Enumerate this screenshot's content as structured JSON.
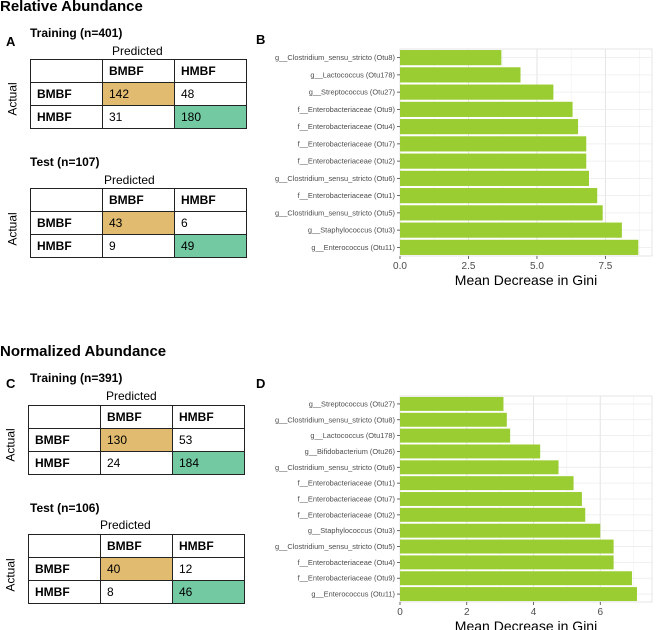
{
  "sections": {
    "relative": "Relative Abundance",
    "normalized": "Normalized Abundance"
  },
  "panels": {
    "a": "A",
    "b": "B",
    "c": "C",
    "d": "D"
  },
  "confusion": {
    "predicted_label": "Predicted",
    "actual_label": "Actual",
    "a_train": {
      "title": "Training (n=401)",
      "cols": [
        "BMBF",
        "HMBF"
      ],
      "rows": [
        {
          "label": "BMBF",
          "values": [
            "142",
            "48"
          ]
        },
        {
          "label": "HMBF",
          "values": [
            "31",
            "180"
          ]
        }
      ]
    },
    "a_test": {
      "title": "Test (n=107)",
      "cols": [
        "BMBF",
        "HMBF"
      ],
      "rows": [
        {
          "label": "BMBF",
          "values": [
            "43",
            "6"
          ]
        },
        {
          "label": "HMBF",
          "values": [
            "9",
            "49"
          ]
        }
      ]
    },
    "c_train": {
      "title": "Training (n=391)",
      "cols": [
        "BMBF",
        "HMBF"
      ],
      "rows": [
        {
          "label": "BMBF",
          "values": [
            "130",
            "53"
          ]
        },
        {
          "label": "HMBF",
          "values": [
            "24",
            "184"
          ]
        }
      ]
    },
    "c_test": {
      "title": "Test (n=106)",
      "cols": [
        "BMBF",
        "HMBF"
      ],
      "rows": [
        {
          "label": "BMBF",
          "values": [
            "40",
            "12"
          ]
        },
        {
          "label": "HMBF",
          "values": [
            "8",
            "46"
          ]
        }
      ]
    }
  },
  "chart_data": [
    {
      "type": "bar",
      "orientation": "horizontal",
      "categories": [
        "g__Clostridium_sensu_stricto (Otu8)",
        "g__Lactococcus (Otu178)",
        "g__Streptococcus (Otu27)",
        "f__Enterobacteriaceae (Otu9)",
        "f__Enterobacteriaceae (Otu4)",
        "f__Enterobacteriaceae (Otu7)",
        "f__Enterobacteriaceae (Otu2)",
        "g__Clostridium_sensu_stricto (Otu6)",
        "f__Enterobacteriaceae (Otu1)",
        "g__Clostridium_sensu_stricto (Otu5)",
        "g__Staphylococcus (Otu3)",
        "g__Enterococcus (Otu11)"
      ],
      "values": [
        3.7,
        4.4,
        5.6,
        6.3,
        6.5,
        6.8,
        6.8,
        6.9,
        7.2,
        7.4,
        8.1,
        8.7
      ],
      "xlabel": "Mean Decrease in Gini",
      "xlim": [
        0,
        9.2
      ],
      "xticks": [
        0,
        2.5,
        5,
        7.5
      ],
      "xtick_labels": [
        "0.0",
        "2.5",
        "5.0",
        "7.5"
      ],
      "bar_color": "#9acd32",
      "grid": true
    },
    {
      "type": "bar",
      "orientation": "horizontal",
      "categories": [
        "g__Streptococcus (Otu27)",
        "g__Clostridium_sensu_stricto (Otu8)",
        "g__Lactococcus (Otu178)",
        "g__Bifidobacterium (Otu26)",
        "g__Clostridium_sensu_stricto (Otu6)",
        "f__Enterobacteriaceae (Otu1)",
        "f__Enterobacteriaceae (Otu7)",
        "f__Enterobacteriaceae (Otu2)",
        "g__Staphylococcus (Otu3)",
        "g__Clostridium_sensu_stricto (Otu5)",
        "f__Enterobacteriaceae (Otu4)",
        "f__Enterobacteriaceae (Otu9)",
        "g__Enterococcus (Otu11)"
      ],
      "values": [
        3.1,
        3.2,
        3.3,
        4.2,
        4.75,
        5.2,
        5.45,
        5.55,
        6.0,
        6.4,
        6.4,
        6.95,
        7.1
      ],
      "xlabel": "Mean Decrease in Gini",
      "xlim": [
        0,
        7.55
      ],
      "xticks": [
        0,
        2,
        4,
        6
      ],
      "xtick_labels": [
        "0",
        "2",
        "4",
        "6"
      ],
      "bar_color": "#9acd32",
      "grid": true
    }
  ],
  "colors": {
    "tp": "#e0bb70",
    "tn": "#72c9a2",
    "bar": "#9acd32"
  }
}
